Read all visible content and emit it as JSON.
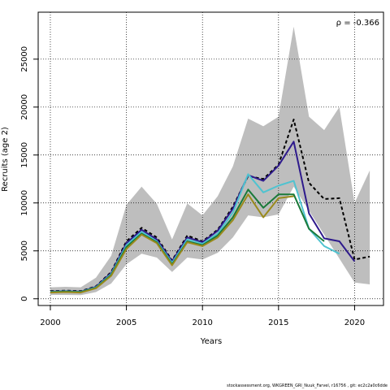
{
  "chart_data": {
    "type": "line",
    "xlabel": "Years",
    "ylabel": "Recruits (age 2)",
    "xlim": [
      1999.2,
      2021.9
    ],
    "ylim": [
      -700,
      29900
    ],
    "xticks": [
      2000,
      2005,
      2010,
      2015,
      2020
    ],
    "yticks": [
      0,
      5000,
      10000,
      15000,
      20000,
      25000
    ],
    "grid": true,
    "grid_style": "dotted",
    "annotation": "ρ = -0.366",
    "confidence_band": {
      "color": "#bebebe",
      "x": [
        2000,
        2001,
        2002,
        2003,
        2004,
        2005,
        2006,
        2007,
        2008,
        2009,
        2010,
        2011,
        2012,
        2013,
        2014,
        2015,
        2016,
        2017,
        2018,
        2019,
        2020,
        2021
      ],
      "upper": [
        1200,
        1250,
        1200,
        2200,
        4500,
        9800,
        11700,
        9900,
        6200,
        9950,
        8700,
        10700,
        13800,
        18800,
        18000,
        19000,
        28400,
        19000,
        17600,
        20000,
        10000,
        13400
      ],
      "lower": [
        400,
        400,
        380,
        700,
        1600,
        3600,
        4700,
        4300,
        2800,
        4300,
        4100,
        4800,
        6400,
        8700,
        8500,
        8800,
        11700,
        null,
        null,
        null,
        1700,
        1500
      ]
    },
    "series": [
      {
        "color": "#000000",
        "dash": "dashed",
        "width": 2,
        "x": [
          2000,
          2001,
          2002,
          2003,
          2004,
          2005,
          2006,
          2007,
          2008,
          2009,
          2010,
          2011,
          2012,
          2013,
          2014,
          2015,
          2016,
          2017,
          2018,
          2019,
          2020,
          2021
        ],
        "values": [
          800,
          850,
          800,
          1300,
          2800,
          6000,
          7400,
          6400,
          4000,
          6600,
          6000,
          7200,
          9600,
          12800,
          12500,
          14000,
          18700,
          12100,
          10400,
          10500,
          4100,
          4400
        ]
      },
      {
        "color": "#2e1a8c",
        "dash": "solid",
        "width": 2,
        "x": [
          2000,
          2001,
          2002,
          2003,
          2004,
          2005,
          2006,
          2007,
          2008,
          2009,
          2010,
          2011,
          2012,
          2013,
          2014,
          2015,
          2016,
          2017,
          2018,
          2019,
          2020
        ],
        "values": [
          750,
          800,
          750,
          1250,
          2700,
          5800,
          7200,
          6200,
          3900,
          6400,
          5900,
          7100,
          9400,
          12900,
          12300,
          13900,
          16400,
          8900,
          6300,
          6000,
          3900
        ]
      },
      {
        "color": "#4fc3d0",
        "dash": "solid",
        "width": 2,
        "x": [
          2000,
          2001,
          2002,
          2003,
          2004,
          2005,
          2006,
          2007,
          2008,
          2009,
          2010,
          2011,
          2012,
          2013,
          2014,
          2015,
          2016,
          2017,
          2018,
          2019
        ],
        "values": [
          720,
          780,
          720,
          1200,
          2600,
          5600,
          7000,
          6000,
          3750,
          6200,
          5750,
          6800,
          9000,
          13000,
          11100,
          11800,
          12300,
          7300,
          5500,
          4700
        ]
      },
      {
        "color": "#1a7a3a",
        "dash": "solid",
        "width": 2,
        "x": [
          2000,
          2001,
          2002,
          2003,
          2004,
          2005,
          2006,
          2007,
          2008,
          2009,
          2010,
          2011,
          2012,
          2013,
          2014,
          2015,
          2016,
          2017,
          2018
        ],
        "values": [
          700,
          750,
          700,
          1150,
          2500,
          5400,
          6800,
          5900,
          3600,
          6000,
          5600,
          6600,
          8500,
          11400,
          9500,
          10900,
          10900,
          7300,
          6000
        ]
      },
      {
        "color": "#9a8a1c",
        "dash": "solid",
        "width": 2,
        "x": [
          2000,
          2001,
          2002,
          2003,
          2004,
          2005,
          2006,
          2007,
          2008,
          2009,
          2010,
          2011,
          2012,
          2013,
          2014,
          2015,
          2016
        ],
        "values": [
          650,
          700,
          650,
          1100,
          2400,
          5200,
          6700,
          5800,
          3500,
          5900,
          5500,
          6400,
          8200,
          10900,
          8500,
          10500,
          10700
        ]
      }
    ]
  },
  "footer": "stockassessment.org, WKGREEN_GRl_Nuuk_Farvel, r16756 , git: ec2c2a0c6dde"
}
